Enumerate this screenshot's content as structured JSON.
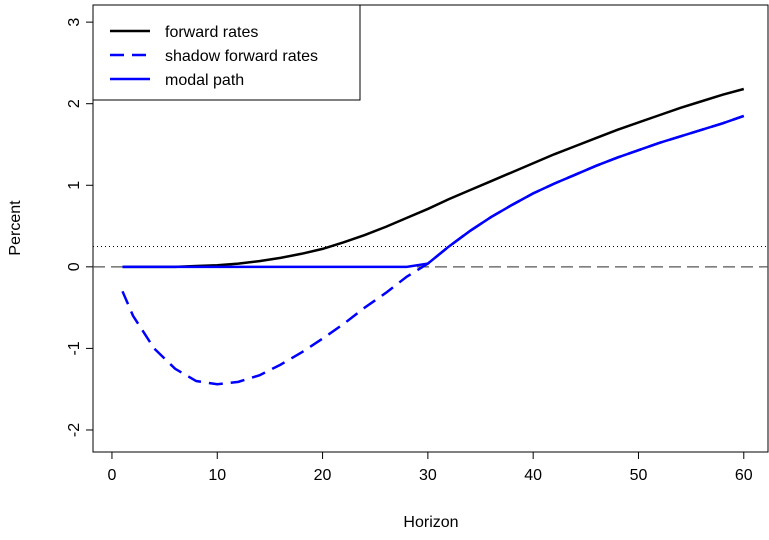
{
  "chart_data": {
    "type": "line",
    "x_label": "Horizon",
    "y_label": "Percent",
    "x": [
      1,
      2,
      4,
      6,
      8,
      10,
      12,
      14,
      16,
      18,
      20,
      22,
      24,
      26,
      28,
      30,
      32,
      34,
      36,
      38,
      40,
      42,
      44,
      46,
      48,
      50,
      52,
      54,
      56,
      58,
      60
    ],
    "series": [
      {
        "name": "forward rates",
        "color": "#000000",
        "dash": "solid",
        "values": [
          0,
          0,
          0,
          0,
          0.01,
          0.02,
          0.04,
          0.07,
          0.11,
          0.16,
          0.22,
          0.3,
          0.39,
          0.49,
          0.6,
          0.71,
          0.83,
          0.94,
          1.05,
          1.16,
          1.27,
          1.38,
          1.48,
          1.58,
          1.68,
          1.77,
          1.86,
          1.95,
          2.03,
          2.11,
          2.18
        ]
      },
      {
        "name": "shadow forward rates",
        "color": "#0000ff",
        "dash": "dashed",
        "values": [
          -0.3,
          -0.6,
          -1.0,
          -1.25,
          -1.4,
          -1.44,
          -1.41,
          -1.33,
          -1.2,
          -1.05,
          -0.88,
          -0.7,
          -0.5,
          -0.32,
          -0.12,
          0.04,
          0.25,
          0.44,
          0.61,
          0.76,
          0.9,
          1.02,
          1.13,
          1.24,
          1.34,
          1.43,
          1.52,
          1.6,
          1.68,
          1.76,
          1.85
        ]
      },
      {
        "name": "modal path",
        "color": "#0000ff",
        "dash": "solid",
        "values": [
          0,
          0,
          0,
          0,
          0,
          0,
          0,
          0,
          0,
          0,
          0,
          0,
          0,
          0,
          0,
          0.04,
          0.25,
          0.44,
          0.61,
          0.76,
          0.9,
          1.02,
          1.13,
          1.24,
          1.34,
          1.43,
          1.52,
          1.6,
          1.68,
          1.76,
          1.85
        ]
      }
    ],
    "reference_lines": [
      {
        "value": 0,
        "style": "dashed"
      },
      {
        "value": 0.25,
        "style": "dotted"
      }
    ],
    "xlim": [
      -1.8,
      62.3
    ],
    "xticks": [
      0,
      10,
      20,
      30,
      40,
      50,
      60
    ],
    "ylim": [
      -2.27,
      3.21
    ],
    "yticks": [
      -2,
      -1,
      0,
      1,
      2,
      3
    ],
    "legend": "top-left"
  }
}
